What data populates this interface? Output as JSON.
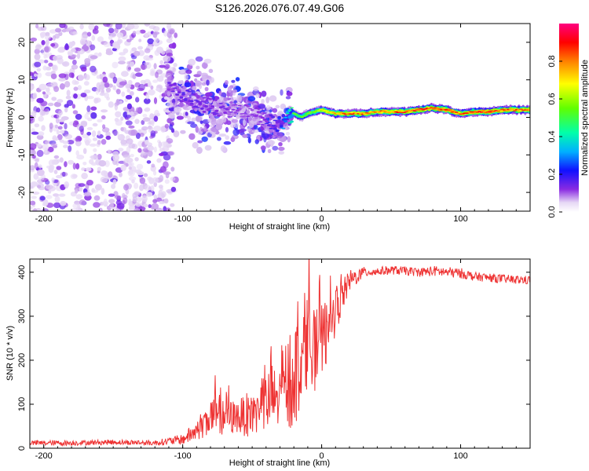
{
  "title": "S126.2026.076.07.49.G06",
  "chart_data": [
    {
      "type": "heatmap",
      "panel": "spectrogram",
      "xlabel": "Height of straight line (km)",
      "ylabel": "Frequency (Hz)",
      "xlim": [
        -210,
        150
      ],
      "ylim": [
        -25,
        25
      ],
      "xticks": [
        -200,
        -100,
        0,
        100
      ],
      "yticks": [
        -20,
        -10,
        0,
        10,
        20
      ],
      "colorbar": {
        "label": "Normalized spectral amplitude",
        "range": [
          0.0,
          1.0
        ],
        "ticks": [
          0.0,
          0.2,
          0.4,
          0.6,
          0.8
        ],
        "tick_labels": [
          "0.0",
          "0.2",
          "0.4",
          "0.6",
          "0.8"
        ],
        "colormap": [
          "#ffffff",
          "#d9c2f0",
          "#8a2be2",
          "#2020ff",
          "#00c8ff",
          "#00ff80",
          "#80ff00",
          "#ffff00",
          "#ff8000",
          "#ff0000",
          "#ff0080"
        ]
      },
      "ridge": {
        "x": [
          -110,
          -100,
          -90,
          -80,
          -70,
          -60,
          -50,
          -40,
          -30,
          -25,
          -20,
          -15,
          -10,
          -5,
          0,
          10,
          20,
          30,
          40,
          50,
          60,
          70,
          80,
          90,
          100,
          110,
          120,
          130,
          140,
          150
        ],
        "frequency": [
          8,
          6,
          4,
          3,
          2,
          2,
          1,
          -1,
          -2,
          0,
          1,
          0,
          1,
          1.5,
          2,
          1,
          1,
          1,
          1.5,
          1.5,
          1.5,
          2,
          2.5,
          2,
          1,
          1.5,
          1.5,
          2,
          2,
          2
        ],
        "amplitude": [
          0.15,
          0.18,
          0.18,
          0.15,
          0.15,
          0.12,
          0.12,
          0.15,
          0.25,
          0.4,
          0.5,
          0.55,
          0.55,
          0.6,
          0.7,
          0.8,
          0.85,
          0.85,
          0.8,
          0.85,
          0.9,
          0.9,
          0.92,
          0.9,
          0.85,
          0.9,
          0.9,
          0.9,
          0.88,
          0.85
        ]
      },
      "noise_region_x": [
        -210,
        -110
      ]
    },
    {
      "type": "line",
      "panel": "snr",
      "xlabel": "Height of straight line (km)",
      "ylabel": "SNR (10 * v/v)",
      "xlim": [
        -210,
        150
      ],
      "ylim": [
        0,
        430
      ],
      "xticks": [
        -200,
        -100,
        0,
        100
      ],
      "yticks": [
        0,
        100,
        200,
        300,
        400
      ],
      "color": "#ee3333",
      "series": [
        {
          "name": "SNR",
          "x": [
            -210,
            -180,
            -150,
            -120,
            -100,
            -90,
            -80,
            -70,
            -60,
            -50,
            -40,
            -30,
            -20,
            -15,
            -10,
            -5,
            0,
            5,
            10,
            20,
            30,
            40,
            50,
            60,
            70,
            80,
            90,
            100,
            110,
            120,
            130,
            140,
            150
          ],
          "mean": [
            12,
            12,
            14,
            12,
            20,
            40,
            75,
            70,
            70,
            80,
            100,
            120,
            160,
            210,
            250,
            220,
            240,
            270,
            310,
            380,
            400,
            402,
            405,
            403,
            400,
            403,
            400,
            398,
            390,
            388,
            385,
            383,
            382
          ],
          "envelope": [
            6,
            6,
            6,
            6,
            12,
            25,
            45,
            40,
            40,
            55,
            70,
            90,
            120,
            120,
            110,
            90,
            90,
            70,
            50,
            25,
            12,
            10,
            10,
            10,
            10,
            12,
            12,
            12,
            10,
            10,
            10,
            10,
            10
          ]
        }
      ]
    }
  ]
}
